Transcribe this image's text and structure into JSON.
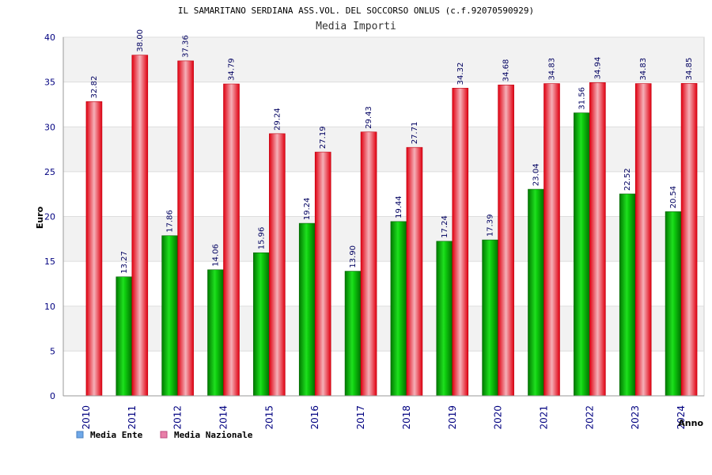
{
  "chart_data": {
    "type": "bar",
    "title": "IL SAMARITANO SERDIANA ASS.VOL. DEL SOCCORSO ONLUS (c.f.92070590929)",
    "subtitle": "Media Importi",
    "xlabel": "Anno",
    "ylabel": "Euro",
    "ylim": [
      0,
      40
    ],
    "yticks": [
      0,
      5,
      10,
      15,
      20,
      25,
      30,
      35,
      40
    ],
    "grid": true,
    "legend_position": "bottom-left",
    "categories": [
      "2010",
      "2011",
      "2012",
      "2014",
      "2015",
      "2016",
      "2017",
      "2018",
      "2019",
      "2020",
      "2021",
      "2022",
      "2023",
      "2024"
    ],
    "series": [
      {
        "name": "Media Ente",
        "legend_color": "#6fa8e8",
        "bar_color": "#10b010",
        "values": [
          null,
          13.27,
          17.86,
          14.06,
          15.96,
          19.24,
          13.9,
          19.44,
          17.24,
          17.39,
          23.04,
          31.56,
          22.52,
          20.54
        ],
        "labels": [
          "",
          "13.27",
          "17.86",
          "14.06",
          "15.96",
          "19.24",
          "13.90",
          "19.44",
          "17.24",
          "17.39",
          "23.04",
          "31.56",
          "22.52",
          "20.54"
        ]
      },
      {
        "name": "Media Nazionale",
        "legend_color": "#e87fa8",
        "bar_color": "#e81020",
        "values": [
          32.82,
          38.0,
          37.36,
          34.79,
          29.24,
          27.19,
          29.43,
          27.71,
          34.32,
          34.68,
          34.83,
          34.94,
          34.83,
          34.85
        ],
        "labels": [
          "32.82",
          "38.00",
          "37.36",
          "34.79",
          "29.24",
          "27.19",
          "29.43",
          "27.71",
          "34.32",
          "34.68",
          "34.83",
          "34.94",
          "34.83",
          "34.85"
        ]
      }
    ]
  }
}
